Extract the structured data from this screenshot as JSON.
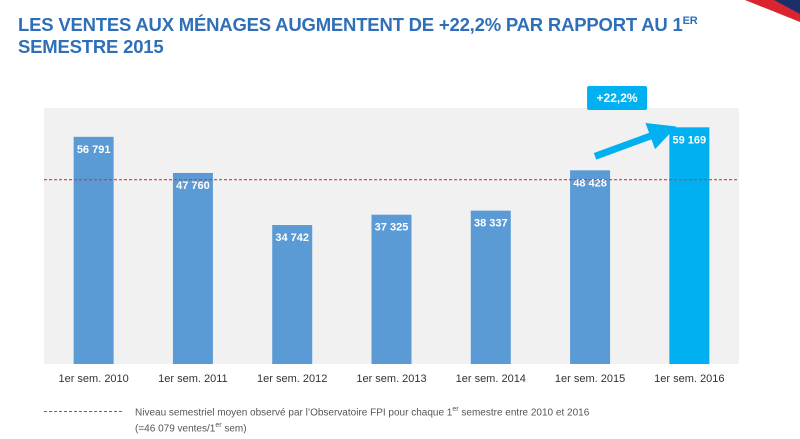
{
  "title": {
    "part1": "LES VENTES AUX MÉNAGES AUGMENTENT DE +22,2% PAR RAPPORT AU 1",
    "sup": "ER",
    "part2": " SEMESTRE 2015"
  },
  "colors": {
    "title": "#2f6fb8",
    "bar": "#5b9bd5",
    "bar_highlight": "#00b0f0",
    "reference_line": "#d33a3a",
    "plot_background": "#f1f1f1"
  },
  "chart_data": {
    "type": "bar",
    "categories": [
      "1er sem. 2010",
      "1er sem. 2011",
      "1er sem. 2012",
      "1er sem. 2013",
      "1er sem. 2014",
      "1er sem. 2015",
      "1er sem. 2016"
    ],
    "values": [
      56791,
      47760,
      34742,
      37325,
      38337,
      48428,
      59169
    ],
    "value_labels": [
      "56 791",
      "47 760",
      "34 742",
      "37 325",
      "38 337",
      "48 428",
      "59 169"
    ],
    "highlight_index": 6,
    "reference_line": {
      "value": 46079,
      "style": "dashed"
    },
    "annotation": {
      "text": "+22,2%",
      "from_index": 5,
      "to_index": 6
    },
    "ylim": [
      0,
      64000
    ],
    "grid": false,
    "xlabel": "",
    "ylabel": ""
  },
  "legend": {
    "line1_a": "Niveau semestriel moyen observé par l’Observatoire FPI pour chaque 1",
    "line1_sup": "er",
    "line1_b": " semestre entre 2010 et 2016",
    "line2_a": "(=46 079 ventes/1",
    "line2_sup": "er",
    "line2_b": " sem)"
  }
}
